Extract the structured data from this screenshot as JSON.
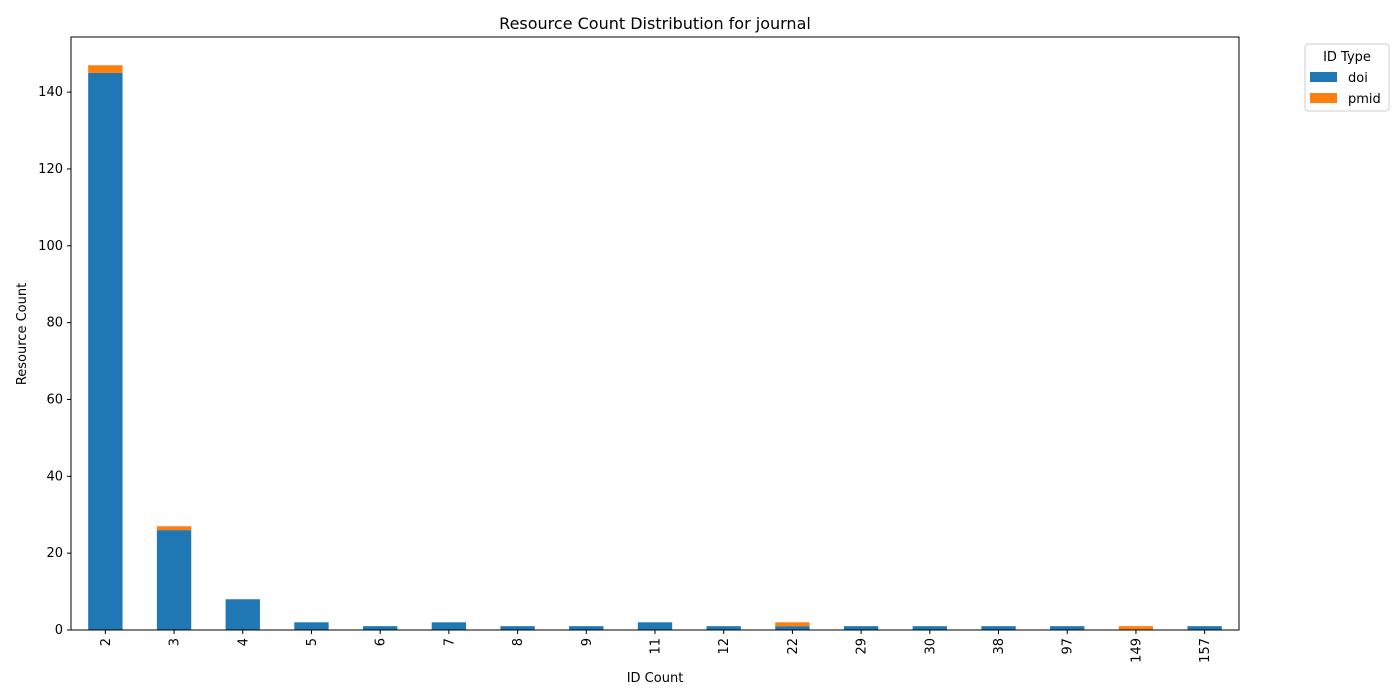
{
  "chart_data": {
    "type": "bar",
    "stacked": true,
    "title": "Resource Count Distribution for journal",
    "xlabel": "ID Count",
    "ylabel": "Resource Count",
    "categories": [
      "2",
      "3",
      "4",
      "5",
      "6",
      "7",
      "8",
      "9",
      "11",
      "12",
      "22",
      "29",
      "30",
      "38",
      "97",
      "149",
      "157"
    ],
    "series": [
      {
        "name": "doi",
        "color": "#1f77b4",
        "values": [
          145,
          26,
          8,
          2,
          1,
          2,
          1,
          1,
          2,
          1,
          1,
          1,
          1,
          1,
          1,
          0,
          1
        ]
      },
      {
        "name": "pmid",
        "color": "#ff7f0e",
        "values": [
          2,
          1,
          0,
          0,
          0,
          0,
          0,
          0,
          0,
          0,
          1,
          0,
          0,
          0,
          0,
          1,
          0
        ]
      }
    ],
    "ylim": [
      0,
      154.35
    ],
    "yticks": [
      0,
      20,
      40,
      60,
      80,
      100,
      120,
      140
    ],
    "grid": false,
    "legend": {
      "title": "ID Type",
      "placement": "outside-top-right"
    }
  }
}
